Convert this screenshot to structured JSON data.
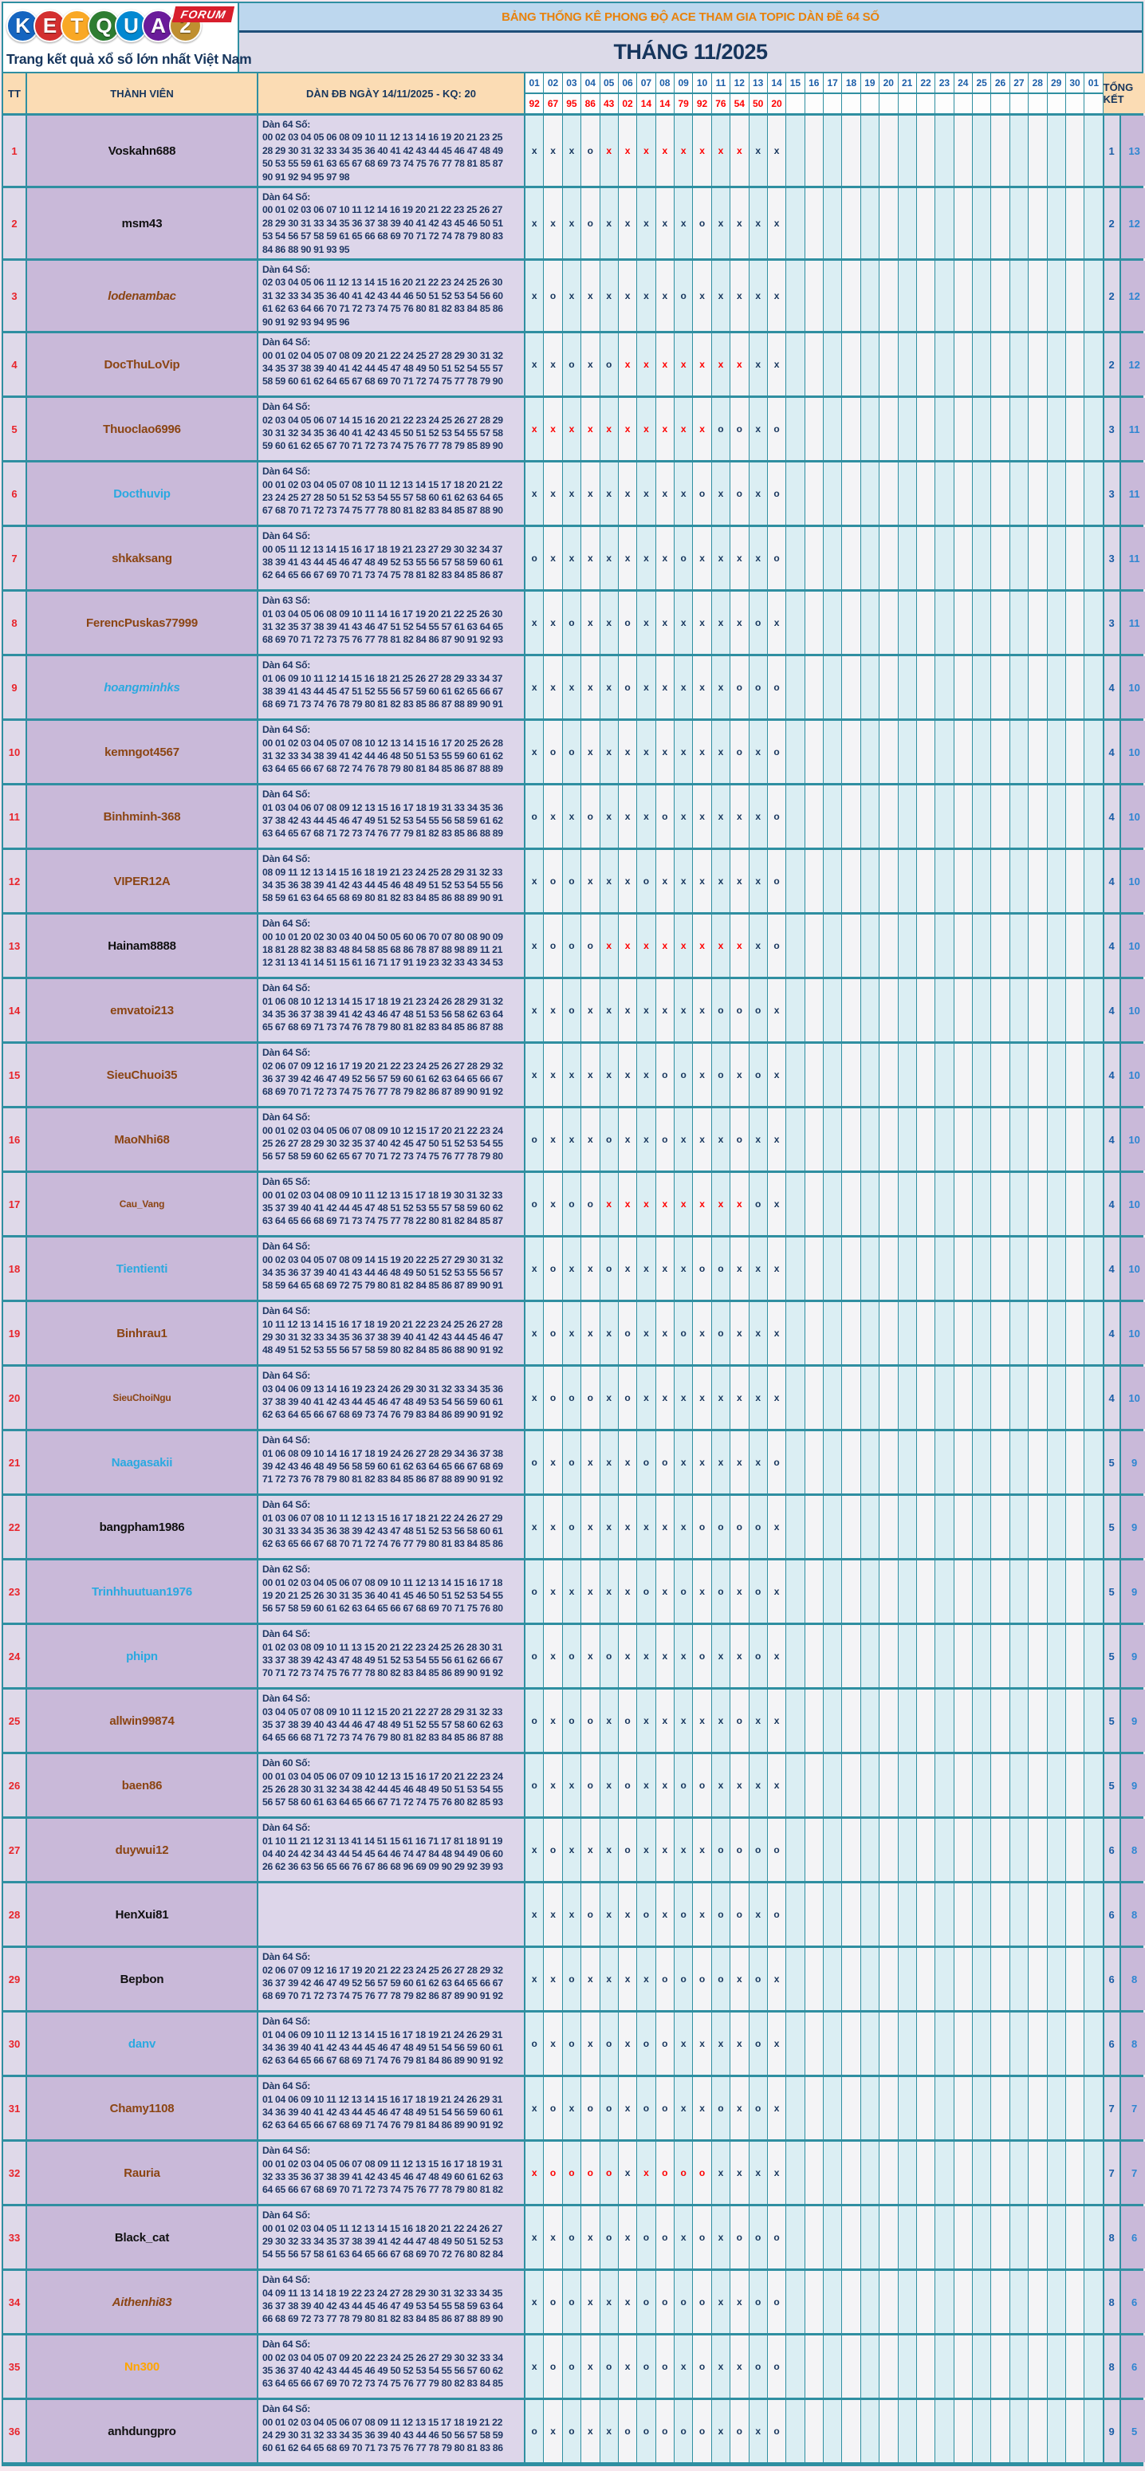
{
  "logo": {
    "letters": [
      {
        "ch": "K",
        "bg": "#1565c0"
      },
      {
        "ch": "E",
        "bg": "#d32f2f"
      },
      {
        "ch": "T",
        "bg": "#f9a825"
      },
      {
        "ch": "Q",
        "bg": "#2e7d32"
      },
      {
        "ch": "U",
        "bg": "#0288d1"
      },
      {
        "ch": "A",
        "bg": "#6a1b9a"
      },
      {
        "ch": "2",
        "bg": "#bf8f30"
      }
    ],
    "forum": "FORUM",
    "tagline": "Trang kết quả xổ số lớn nhất Việt Nam"
  },
  "header": {
    "banner": "BẢNG THỐNG KÊ PHONG ĐỘ ACE THAM GIA TOPIC DÀN ĐỀ 64 SỐ",
    "month": "THÁNG 11/2025"
  },
  "colors": {
    "teal_border": "#2f8fa1",
    "banner_bg": "#bdd7ee",
    "banner_text": "#e8820c",
    "mark_navy": "#17365d",
    "mark_red": "#fe0000",
    "member_bg": "#c9b9d9",
    "dan_bg": "#ddd6ea"
  },
  "table": {
    "col_tt": "TT",
    "col_member": "THÀNH VIÊN",
    "col_dan": "DÀN ĐB NGÀY 14/11/2025 - KQ: 20",
    "col_total": "TỔNG KẾT",
    "days": [
      "01",
      "02",
      "03",
      "04",
      "05",
      "06",
      "07",
      "08",
      "09",
      "10",
      "11",
      "12",
      "13",
      "14",
      "15",
      "16",
      "17",
      "18",
      "19",
      "20",
      "21",
      "22",
      "23",
      "24",
      "25",
      "26",
      "27",
      "28",
      "29",
      "30",
      "01"
    ],
    "results": [
      "92",
      "67",
      "95",
      "86",
      "43",
      "02",
      "14",
      "14",
      "79",
      "92",
      "76",
      "54",
      "50",
      "20"
    ],
    "rows": [
      {
        "tt": "1",
        "member": "Voskahn688",
        "color": "#111111",
        "dan_title": "Dàn 64 Số:",
        "dan_lines": [
          "00 02 03 04 05 06 08 09 10 11 12 13 14 16 19 20 21 23 25",
          "28 29 30 31 32 33 34 35 36 40 41 42 43 44 45 46 47 48 49",
          "50 53 55 59 61 63 65 67 68 69 73 74 75 76 77 78 81 85 87",
          "90 91 92 94 95 97 98"
        ],
        "marks": "xxxoXXXXXXXXxx",
        "o": "1",
        "x": "13"
      },
      {
        "tt": "2",
        "member": "msm43",
        "color": "#111111",
        "dan_title": "Dàn 64 Số:",
        "dan_lines": [
          "00 01 02 03 06 07 10 11 12 14 16 19 20 21 22 23 25 26 27",
          "28 29 30 31 33 34 35 36 37 38 39 40 41 42 43 45 46 50 51",
          "53 54 56 57 58 59 61 65 66 68 69 70 71 72 74 78 79 80 83",
          "84 86 88 90 91 93 95"
        ],
        "marks": "xxxoxxxxxoxxxx",
        "o": "2",
        "x": "12"
      },
      {
        "tt": "3",
        "member": "lodenambac",
        "color": "#8B4513",
        "italic": true,
        "dan_title": "Dàn 64 Số:",
        "dan_lines": [
          "02 03 04 05 06 11 12 13 14 15 16 20 21 22 23 24 25 26 30",
          "31 32 33 34 35 36 40 41 42 43 44 46 50 51 52 53 54 56 60",
          "61 62 63 64 66 70 71 72 73 74 75 76 80 81 82 83 84 85 86",
          "90 91 92 93 94 95 96"
        ],
        "marks": "xoxxxxxxoxxxxx",
        "o": "2",
        "x": "12"
      },
      {
        "tt": "4",
        "member": "DocThuLoVip",
        "color": "#8B4513",
        "dan_title": "Dàn 64 Số:",
        "dan_lines": [
          "00 01 02 04 05 07 08 09 20 21 22 24 25 27 28 29 30 31 32",
          "34 35 37 38 39 40 41 42 44 45 47 48 49 50 51 52 54 55 57",
          "58 59 60 61 62 64 65 67 68 69 70 71 72 74 75 77 78 79 90"
        ],
        "marks": "xxoxoXXXXXXXxx",
        "o": "2",
        "x": "12"
      },
      {
        "tt": "5",
        "member": "Thuoclao6996",
        "color": "#8B4513",
        "dan_title": "Dàn 64 Số:",
        "dan_lines": [
          "02 03 04 05 06 07 14 15 16 20 21 22 23 24 25 26 27 28 29",
          "30 31 32 34 35 36 40 41 42 43 45 50 51 52 53 54 55 57 58",
          "59 60 61 62 65 67 70 71 72 73 74 75 76 77 78 79 85 89 90"
        ],
        "marks": "XXXXXXXXXXooxo",
        "o": "3",
        "x": "11"
      },
      {
        "tt": "6",
        "member": "Docthuvip",
        "color": "#2aa9e0",
        "dan_title": "Dàn 64 Số:",
        "dan_lines": [
          "00 01 02 03 04 05 07 08 10 11 12 13 14 15 17 18 20 21 22",
          "23 24 25 27 28 50 51 52 53 54 55 57 58 60 61 62 63 64 65",
          "67 68 70 71 72 73 74 75 77 78 80 81 82 83 84 85 87 88 90"
        ],
        "marks": "xxxxxxxxxoxoxo",
        "o": "3",
        "x": "11"
      },
      {
        "tt": "7",
        "member": "shkaksang",
        "color": "#8B4513",
        "dan_title": "Dàn 64 Số:",
        "dan_lines": [
          "00 05 11 12 13 14 15 16 17 18 19 21 23 27 29 30 32 34 37",
          "38 39 41 43 44 45 46 47 48 49 52 53 55 56 57 58 59 60 61",
          "62 64 65 66 67 69 70 71 73 74 75 78 81 82 83 84 85 86 87"
        ],
        "marks": "oxxxxxxxoxxxxo",
        "o": "3",
        "x": "11"
      },
      {
        "tt": "8",
        "member": "FerencPuskas77999",
        "color": "#8B4513",
        "dan_title": "Dàn 63 Số:",
        "dan_lines": [
          "01 03 04 05 06 08 09 10 11 14 16 17 19 20 21 22 25 26 30",
          "31 32 35 37 38 39 41 43 46 47 51 52 54 55 57 61 63 64 65",
          "68 69 70 71 72 73 75 76 77 78 81 82 84 86 87 90 91 92 93"
        ],
        "marks": "xxoxxoxxxxxxox",
        "o": "3",
        "x": "11"
      },
      {
        "tt": "9",
        "member": "hoangminhks",
        "color": "#2aa9e0",
        "italic": true,
        "dan_title": "Dàn 64 Số:",
        "dan_lines": [
          "01 06 09 10 11 12 14 15 16 18 21 25 26 27 28 29 33 34 37",
          "38 39 41 43 44 45 47 51 52 55 56 57 59 60 61 62 65 66 67",
          "68 69 71 73 74 76 78 79 80 81 82 83 85 86 87 88 89 90 91"
        ],
        "marks": "xxxxxoxxxxxooo",
        "o": "4",
        "x": "10"
      },
      {
        "tt": "10",
        "member": "kemngot4567",
        "color": "#8B4513",
        "dan_title": "Dàn 64 Số:",
        "dan_lines": [
          "00 01 02 03 04 05 07 08 10 12 13 14 15 16 17 20 25 26 28",
          "31 32 33 34 38 39 41 42 44 46 48 50 51 53 55 59 60 61 62",
          "63 64 65 66 67 68 72 74 76 78 79 80 81 84 85 86 87 88 89"
        ],
        "marks": "xooxxxxxxxxoxo",
        "o": "4",
        "x": "10"
      },
      {
        "tt": "11",
        "member": "Binhminh-368",
        "color": "#8B4513",
        "dan_title": "Dàn 64 Số:",
        "dan_lines": [
          "01 03 04 06 07 08 09 12 13 15 16 17 18 19 31 33 34 35 36",
          "37 38 42 43 44 45 46 47 49 51 52 53 54 55 56 58 59 61 62",
          "63 64 65 67 68 71 72 73 74 76 77 79 81 82 83 85 86 88 89"
        ],
        "marks": "oxxoxxxoxxxxxo",
        "o": "4",
        "x": "10"
      },
      {
        "tt": "12",
        "member": "VIPER12A",
        "color": "#8B4513",
        "dan_title": "Dàn 64 Số:",
        "dan_lines": [
          "08 09 11 12 13 14 15 16 18 19 21 23 24 25 28 29 31 32 33",
          "34 35 36 38 39 41 42 43 44 45 46 48 49 51 52 53 54 55 56",
          "58 59 61 63 64 65 68 69 80 81 82 83 84 85 86 88 89 90 91"
        ],
        "marks": "xooxxxoxxxxxxo",
        "o": "4",
        "x": "10"
      },
      {
        "tt": "13",
        "member": "Hainam8888",
        "color": "#111111",
        "dan_title": "Dàn 64 Số:",
        "dan_lines": [
          "00 10 01 20 02 30 03 40 04 50 05 60 06 70 07 80 08 90 09",
          "18 81 28 82 38 83 48 84 58 85 68 86 78 87 88 98 89 11 21",
          "12 31 13 41 14 51 15 61 16 71 17 91 19 23 32 33 43 34 53"
        ],
        "marks": "xoooXXXXXXXXxo",
        "o": "4",
        "x": "10"
      },
      {
        "tt": "14",
        "member": "emvatoi213",
        "color": "#8B4513",
        "dan_title": "Dàn 64 Số:",
        "dan_lines": [
          "01 06 08 10 12 13 14 15 17 18 19 21 23 24 26 28 29 31 32",
          "34 35 36 37 38 39 41 42 43 46 47 48 51 53 56 58 62 63 64",
          "65 67 68 69 71 73 74 76 78 79 80 81 82 83 84 85 86 87 88"
        ],
        "marks": "xxoxxxxxxxooox",
        "o": "4",
        "x": "10"
      },
      {
        "tt": "15",
        "member": "SieuChuoi35",
        "color": "#8B4513",
        "dan_title": "Dàn 64 Số:",
        "dan_lines": [
          "02 06 07 09 12 16 17 19 20 21 22 23 24 25 26 27 28 29 32",
          "36 37 39 42 46 47 49 52 56 57 59 60 61 62 63 64 65 66 67",
          "68 69 70 71 72 73 74 75 76 77 78 79 82 86 87 89 90 91 92"
        ],
        "marks": "xxxxxxxooxoxox",
        "o": "4",
        "x": "10"
      },
      {
        "tt": "16",
        "member": "MaoNhi68",
        "color": "#8B4513",
        "dan_title": "Dàn 64 Số:",
        "dan_lines": [
          "00 01 02 03 04 05 06 07 08 09 10 12 15 17 20 21 22 23 24",
          "25 26 27 28 29 30 32 35 37 40 42 45 47 50 51 52 53 54 55",
          "56 57 58 59 60 62 65 67 70 71 72 73 74 75 76 77 78 79 80"
        ],
        "marks": "oxxxoxxoxxxoxx",
        "o": "4",
        "x": "10"
      },
      {
        "tt": "17",
        "member": "Cau_Vang",
        "color": "#8B4513",
        "small": true,
        "dan_title": "Dàn 65 Số:",
        "dan_lines": [
          "00 01 02 03 04 08 09 10 11 12 13 15 17 18 19 30 31 32 33",
          "35 37 39 40 41 42 44 45 47 48 51 52 53 55 57 58 59 60 62",
          "63 64 65 66 68 69 71 73 74 75 77 78 22 80 81 82 84 85 87"
        ],
        "marks": "oxooXXXXXXXXox",
        "o": "4",
        "x": "10"
      },
      {
        "tt": "18",
        "member": "Tientienti",
        "color": "#2aa9e0",
        "dan_title": "Dàn 64 Số:",
        "dan_lines": [
          "00 02 03 04 05 07 08 09 14 15 19 20 22 25 27 29 30 31 32",
          "34 35 36 37 39 40 41 43 44 46 48 49 50 51 52 53 55 56 57",
          "58 59 64 65 68 69 72 75 79 80 81 82 84 85 86 87 89 90 91"
        ],
        "marks": "xoxxoxxxxooxxx",
        "o": "4",
        "x": "10"
      },
      {
        "tt": "19",
        "member": "Binhrau1",
        "color": "#8B4513",
        "dan_title": "Dàn 64 Số:",
        "dan_lines": [
          "10 11 12 13 14 15 16 17 18 19 20 21 22 23 24 25 26 27 28",
          "29 30 31 32 33 34 35 36 37 38 39 40 41 42 43 44 45 46 47",
          "48 49 51 52 53 55 56 57 58 59 80 82 84 85 86 88 90 91 92"
        ],
        "marks": "xoxxxoxxoxoxxx",
        "o": "4",
        "x": "10"
      },
      {
        "tt": "20",
        "member": "SieuChoiNgu",
        "color": "#8B4513",
        "small": true,
        "dan_title": "Dàn 64 Số:",
        "dan_lines": [
          "03 04 06 09 13 14 16 19 23 24 26 29 30 31 32 33 34 35 36",
          "37 38 39 40 41 42 43 44 45 46 47 48 49 53 54 56 59 60 61",
          "62 63 64 65 66 67 68 69 73 74 76 79 83 84 86 89 90 91 92"
        ],
        "marks": "xoooxoxxxxxxxx",
        "o": "4",
        "x": "10"
      },
      {
        "tt": "21",
        "member": "Naagasakii",
        "color": "#2aa9e0",
        "dan_title": "Dàn 64 Số:",
        "dan_lines": [
          "01 06 08 09 10 14 16 17 18 19 24 26 27 28 29 34 36 37 38",
          "39 42 43 46 48 49 56 58 59 60 61 62 63 64 65 66 67 68 69",
          "71 72 73 76 78 79 80 81 82 83 84 85 86 87 88 89 90 91 92"
        ],
        "marks": "oxoxxxooxxxxxo",
        "o": "5",
        "x": "9"
      },
      {
        "tt": "22",
        "member": "bangpham1986",
        "color": "#111111",
        "dan_title": "Dàn 64 Số:",
        "dan_lines": [
          "01 03 06 07 08 10 11 12 13 15 16 17 18 21 22 24 26 27 29",
          "30 31 33 34 35 36 38 39 42 43 47 48 51 52 53 56 58 60 61",
          "62 63 65 66 67 68 70 71 72 74 76 77 79 80 81 83 84 85 86"
        ],
        "marks": "xxoxxxxxxoooox",
        "o": "5",
        "x": "9"
      },
      {
        "tt": "23",
        "member": "Trinhhuutuan1976",
        "color": "#2aa9e0",
        "dan_title": "Dàn 62 Số:",
        "dan_lines": [
          "00 01 02 03 04 05 06 07 08 09 10 11 12 13 14 15 16 17 18",
          "19 20 21 25 26 30 31 35 36 40 41 45 46 50 51 52 53 54 55",
          "56 57 58 59 60 61 62 63 64 65 66 67 68 69 70 71 75 76 80"
        ],
        "marks": "oxxxxxoxoxoxox",
        "o": "5",
        "x": "9"
      },
      {
        "tt": "24",
        "member": "phipn",
        "color": "#2aa9e0",
        "dan_title": "Dàn 64 Số:",
        "dan_lines": [
          "01 02 03 08 09 10 11 13 15 20 21 22 23 24 25 26 28 30 31",
          "33 37 38 39 42 43 47 48 49 51 52 53 54 55 56 61 62 66 67",
          "70 71 72 73 74 75 76 77 78 80 82 83 84 85 86 89 90 91 92"
        ],
        "marks": "oxoxoxxxxoxxox",
        "o": "5",
        "x": "9"
      },
      {
        "tt": "25",
        "member": "allwin99874",
        "color": "#8B4513",
        "dan_title": "Dàn 64 Số:",
        "dan_lines": [
          "03 04 05 07 08 09 10 11 12 15 20 21 22 27 28 29 31 32 33",
          "35 37 38 39 40 43 44 46 47 48 49 51 52 55 57 58 60 62 63",
          "64 65 66 68 71 72 73 74 76 79 80 81 82 83 84 85 86 87 88"
        ],
        "marks": "oxooxoxxxxxoxx",
        "o": "5",
        "x": "9"
      },
      {
        "tt": "26",
        "member": "baen86",
        "color": "#8B4513",
        "dan_title": "Dàn 60 Số:",
        "dan_lines": [
          "00 01 03 04 05 06 07 09 10 12 13 15 16 17 20 21 22 23 24",
          "25 26 28 30 31 32 34 38 42 44 45 46 48 49 50 51 53 54 55",
          "56 57 58 60 61 63 64 65 66 67 71 72 74 75 76 80 82 85 93"
        ],
        "marks": "oxxoxoxxooxxxx",
        "o": "5",
        "x": "9"
      },
      {
        "tt": "27",
        "member": "duywui12",
        "color": "#8B4513",
        "dan_title": "Dàn 64 Số:",
        "dan_lines": [
          "01 10 11 21 12 31 13 41 14 51 15 61 16 71 17 81 18 91 19",
          "04 40 24 42 34 43 44 54 45 64 46 74 47 84 48 94 49 06 60",
          "26 62 36 63 56 65 66 76 67 86 68 96 69 09 90 29 92 39 93"
        ],
        "marks": "xoxxxoxxxxoooo",
        "o": "6",
        "x": "8"
      },
      {
        "tt": "28",
        "member": "HenXui81",
        "color": "#111111",
        "dan_title": "",
        "dan_lines": [],
        "marks": "xxxoxxoxoxooxo",
        "o": "6",
        "x": "8"
      },
      {
        "tt": "29",
        "member": "Bepbon",
        "color": "#111111",
        "dan_title": "Dàn 64 Số:",
        "dan_lines": [
          "02 06 07 09 12 16 17 19 20 21 22 23 24 25 26 27 28 29 32",
          "36 37 39 42 46 47 49 52 56 57 59 60 61 62 63 64 65 66 67",
          "68 69 70 71 72 73 74 75 76 77 78 79 82 86 87 89 90 91 92"
        ],
        "marks": "xxoxxxxooooxox",
        "o": "6",
        "x": "8"
      },
      {
        "tt": "30",
        "member": "danv",
        "color": "#2aa9e0",
        "dan_title": "Dàn 64 Số:",
        "dan_lines": [
          "01 04 06 09 10 11 12 13 14 15 16 17 18 19 21 24 26 29 31",
          "34 36 39 40 41 42 43 44 45 46 47 48 49 51 54 56 59 60 61",
          "62 63 64 65 66 67 68 69 71 74 76 79 81 84 86 89 90 91 92"
        ],
        "marks": "oxoxoxooxxxxox",
        "o": "6",
        "x": "8"
      },
      {
        "tt": "31",
        "member": "Chamy1108",
        "color": "#8B4513",
        "dan_title": "Dàn 64 Số:",
        "dan_lines": [
          "01 04 06 09 10 11 12 13 14 15 16 17 18 19 21 24 26 29 31",
          "34 36 39 40 41 42 43 44 45 46 47 48 49 51 54 56 59 60 61",
          "62 63 64 65 66 67 68 69 71 74 76 79 81 84 86 89 90 91 92"
        ],
        "marks": "xoxooxooxxoxox",
        "o": "7",
        "x": "7"
      },
      {
        "tt": "32",
        "member": "Rauria",
        "color": "#8B4513",
        "dan_title": "Dàn 64 Số:",
        "dan_lines": [
          "00 01 02 03 04 05 06 07 08 09 11 12 13 15 16 17 18 19 31",
          "32 33 35 36 37 38 39 41 42 43 45 46 47 48 49 60 61 62 63",
          "64 65 66 67 68 69 70 71 72 73 74 75 76 77 78 79 80 81 82"
        ],
        "marks": "XOOOOxXOOOxxxx",
        "o": "7",
        "x": "7"
      },
      {
        "tt": "33",
        "member": "Black_cat",
        "color": "#111111",
        "dan_title": "Dàn 64 Số:",
        "dan_lines": [
          "00 01 02 03 04 05 11 12 13 14 15 16 18 20 21 22 24 26 27",
          "29 30 32 33 34 35 37 38 39 41 42 44 47 48 49 50 51 52 53",
          "54 55 56 57 58 61 63 64 65 66 67 68 69 70 72 76 80 82 84"
        ],
        "marks": "xxoxoxooxoxooo",
        "o": "8",
        "x": "6"
      },
      {
        "tt": "34",
        "member": "Aithenhi83",
        "color": "#8B4513",
        "italic": true,
        "dan_title": "Dàn 64 Số:",
        "dan_lines": [
          "04 09 11 13 14 18 19 22 23 24 27 28 29 30 31 32 33 34 35",
          "36 37 38 39 40 42 43 44 45 46 47 49 53 54 55 58 59 63 64",
          "66 68 69 72 73 77 78 79 80 81 82 83 84 85 86 87 88 89 90"
        ],
        "marks": "xooxxxooooxxoo",
        "o": "8",
        "x": "6"
      },
      {
        "tt": "35",
        "member": "Nn300",
        "color": "#FFA500",
        "dan_title": "Dàn 64 Số:",
        "dan_lines": [
          "00 02 03 04 05 07 09 20 22 23 24 25 26 27 29 30 32 33 34",
          "35 36 37 40 42 43 44 45 46 49 50 52 53 54 55 56 57 60 62",
          "63 64 65 66 67 69 70 72 73 74 75 76 77 79 80 82 83 84 85"
        ],
        "marks": "xooxoxooxoxxoo",
        "o": "8",
        "x": "6"
      },
      {
        "tt": "36",
        "member": "anhdungpro",
        "color": "#111111",
        "dan_title": "Dàn 64 Số:",
        "dan_lines": [
          "00 01 02 03 04 05 06 07 08 09 11 12 13 15 17 18 19 21 22",
          "24 29 30 31 32 33 34 35 36 39 40 43 44 46 50 56 57 58 59",
          "60 61 62 64 65 68 69 70 71 73 75 76 77 78 79 80 81 83 86"
        ],
        "marks": "oxoxxoooooxoxo",
        "o": "9",
        "x": "5"
      }
    ]
  }
}
